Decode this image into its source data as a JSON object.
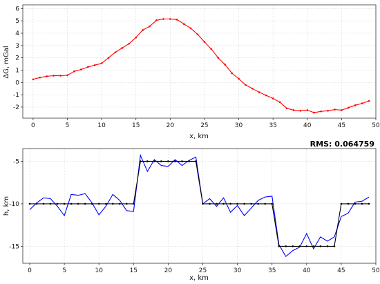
{
  "chart_data": [
    {
      "type": "line",
      "xlabel": "x, km",
      "ylabel": "ΔG, mGal",
      "xlim": [
        -1.5,
        50
      ],
      "ylim": [
        -2.9,
        6.3
      ],
      "xticks": [
        0,
        5,
        10,
        15,
        20,
        25,
        30,
        35,
        40,
        45,
        50
      ],
      "yticks": [
        -2,
        -1,
        0,
        1,
        2,
        3,
        4,
        5,
        6
      ],
      "grid": true,
      "series": [
        {
          "color": "#ff0000",
          "marker": "dot",
          "x": [
            0,
            1,
            2,
            3,
            4,
            5,
            6,
            7,
            8,
            9,
            10,
            11,
            12,
            13,
            14,
            15,
            16,
            17,
            18,
            19,
            20,
            21,
            22,
            23,
            24,
            25,
            26,
            27,
            28,
            29,
            30,
            31,
            32,
            33,
            34,
            35,
            36,
            37,
            38,
            39,
            40,
            41,
            42,
            43,
            44,
            45,
            46,
            47,
            48,
            49
          ],
          "y": [
            0.25,
            0.4,
            0.5,
            0.55,
            0.55,
            0.58,
            0.9,
            1.05,
            1.25,
            1.4,
            1.55,
            2.0,
            2.45,
            2.8,
            3.15,
            3.65,
            4.25,
            4.55,
            5.05,
            5.15,
            5.15,
            5.1,
            4.75,
            4.4,
            3.9,
            3.3,
            2.7,
            2.0,
            1.45,
            0.75,
            0.3,
            -0.2,
            -0.5,
            -0.8,
            -1.05,
            -1.3,
            -1.6,
            -2.1,
            -2.25,
            -2.3,
            -2.25,
            -2.45,
            -2.35,
            -2.3,
            -2.2,
            -2.25,
            -2.05,
            -1.85,
            -1.7,
            -1.5
          ]
        }
      ]
    },
    {
      "type": "line",
      "xlabel": "x, km",
      "ylabel": "h, km",
      "annotation": "RMS: 0.064759",
      "xlim": [
        -1,
        50
      ],
      "ylim": [
        -17,
        -3.5
      ],
      "xticks": [
        0,
        5,
        10,
        15,
        20,
        25,
        30,
        35,
        40,
        45,
        50
      ],
      "yticks": [
        -15,
        -10,
        -5
      ],
      "grid": true,
      "series": [
        {
          "color": "#0000ff",
          "marker": "none",
          "x": [
            0,
            1,
            2,
            3,
            4,
            5,
            6,
            7,
            8,
            9,
            10,
            11,
            12,
            13,
            14,
            15,
            16,
            17,
            18,
            19,
            20,
            21,
            22,
            23,
            24,
            25,
            26,
            27,
            28,
            29,
            30,
            31,
            32,
            33,
            34,
            35,
            36,
            37,
            38,
            39,
            40,
            41,
            42,
            43,
            44,
            45,
            46,
            47,
            48,
            49
          ],
          "y": [
            -10.7,
            -9.9,
            -9.3,
            -9.4,
            -10.3,
            -11.4,
            -8.9,
            -9.0,
            -8.8,
            -9.9,
            -11.3,
            -10.3,
            -8.9,
            -9.6,
            -10.8,
            -10.9,
            -4.3,
            -6.2,
            -4.8,
            -5.5,
            -5.6,
            -4.8,
            -5.5,
            -4.9,
            -4.5,
            -10.0,
            -9.4,
            -10.3,
            -9.3,
            -11.0,
            -10.2,
            -11.4,
            -10.5,
            -9.6,
            -9.2,
            -9.1,
            -14.8,
            -16.2,
            -15.5,
            -15.1,
            -13.5,
            -15.3,
            -13.9,
            -14.4,
            -13.9,
            -11.5,
            -11.1,
            -9.8,
            -9.7,
            -9.2
          ]
        },
        {
          "color": "#000000",
          "marker": "dot",
          "x": [
            0,
            1,
            2,
            3,
            4,
            5,
            6,
            7,
            8,
            9,
            10,
            11,
            12,
            13,
            14,
            15,
            16,
            17,
            18,
            19,
            20,
            21,
            22,
            23,
            24,
            25,
            26,
            27,
            28,
            29,
            30,
            31,
            32,
            33,
            34,
            35,
            36,
            37,
            38,
            39,
            40,
            41,
            42,
            43,
            44,
            45,
            46,
            47,
            48,
            49
          ],
          "y": [
            -10,
            -10,
            -10,
            -10,
            -10,
            -10,
            -10,
            -10,
            -10,
            -10,
            -10,
            -10,
            -10,
            -10,
            -10,
            -10,
            -5,
            -5,
            -5,
            -5,
            -5,
            -5,
            -5,
            -5,
            -5,
            -10,
            -10,
            -10,
            -10,
            -10,
            -10,
            -10,
            -10,
            -10,
            -10,
            -10,
            -15,
            -15,
            -15,
            -15,
            -15,
            -15,
            -15,
            -15,
            -15,
            -10,
            -10,
            -10,
            -10,
            -10
          ]
        }
      ]
    }
  ]
}
